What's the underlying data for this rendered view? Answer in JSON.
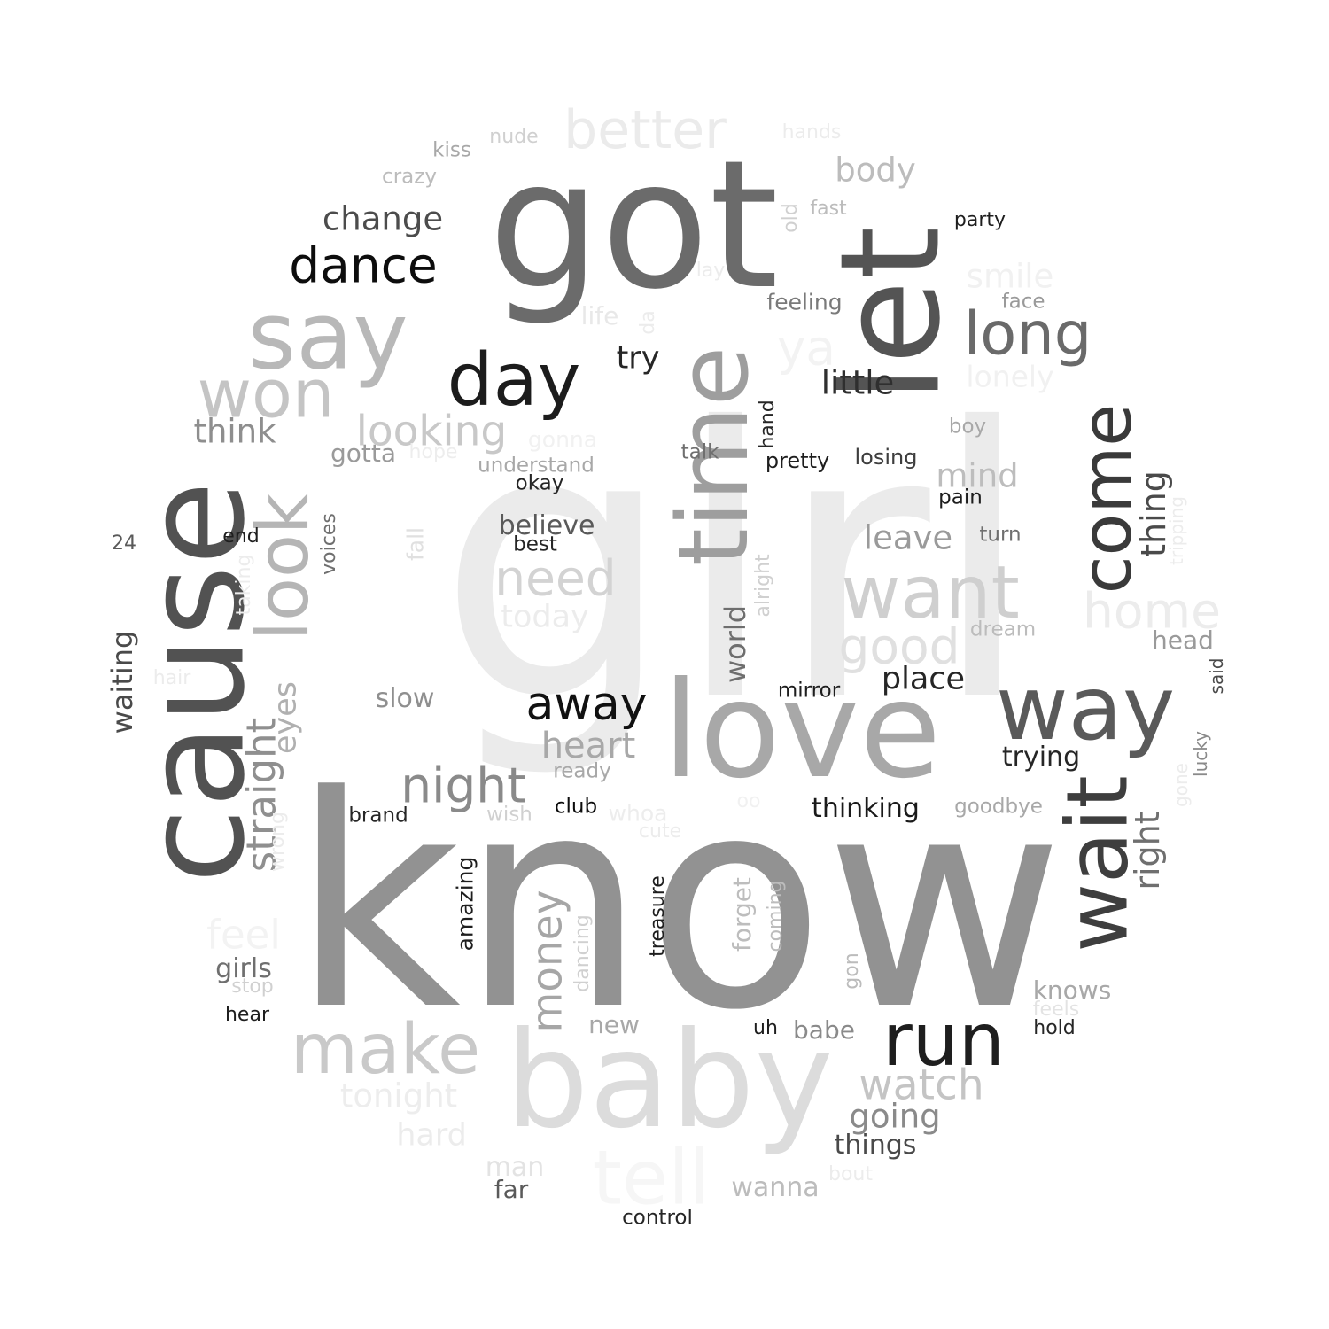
{
  "words": [
    {
      "text": "girl",
      "color": "#ebebeb"
    },
    {
      "text": "know",
      "color": "#929292"
    },
    {
      "text": "got",
      "color": "#6b6b6b"
    },
    {
      "text": "love",
      "color": "#a8a8a8"
    },
    {
      "text": "baby",
      "color": "#dcdcdc"
    },
    {
      "text": "cause",
      "color": "#525252"
    },
    {
      "text": "let",
      "color": "#545454"
    },
    {
      "text": "say",
      "color": "#b8b8b8"
    },
    {
      "text": "time",
      "color": "#9e9e9e"
    },
    {
      "text": "wait",
      "color": "#3e3e3e"
    },
    {
      "text": "way",
      "color": "#5a5a5a"
    },
    {
      "text": "won",
      "color": "#c4c4c4"
    },
    {
      "text": "run",
      "color": "#1e1e1e"
    },
    {
      "text": "day",
      "color": "#1c1c1c"
    },
    {
      "text": "want",
      "color": "#cfcfcf"
    },
    {
      "text": "make",
      "color": "#c9c9c9"
    },
    {
      "text": "come",
      "color": "#3a3a3a"
    },
    {
      "text": "tell",
      "color": "#f6f6f6"
    },
    {
      "text": "look",
      "color": "#b5b5b5"
    },
    {
      "text": "long",
      "color": "#6a6a6a"
    },
    {
      "text": "better",
      "color": "#ebebeb"
    },
    {
      "text": "dance",
      "color": "#0d0d0d"
    },
    {
      "text": "need",
      "color": "#d3d3d3"
    },
    {
      "text": "away",
      "color": "#111111"
    },
    {
      "text": "night",
      "color": "#8a8a8a"
    },
    {
      "text": "home",
      "color": "#ececec"
    },
    {
      "text": "good",
      "color": "#e0e0e0"
    },
    {
      "text": "watch",
      "color": "#c4c4c4"
    },
    {
      "text": "looking",
      "color": "#c8c8c8"
    },
    {
      "text": "straight",
      "color": "#8f8f8f"
    },
    {
      "text": "heart",
      "color": "#a8a8a8"
    },
    {
      "text": "ya",
      "color": "#f3f3f3"
    },
    {
      "text": "feel",
      "color": "#f3f3f3"
    },
    {
      "text": "money",
      "color": "#a6a6a6"
    },
    {
      "text": "little",
      "color": "#2f2f2f"
    },
    {
      "text": "thing",
      "color": "#4a4a4a"
    },
    {
      "text": "right",
      "color": "#6f6f6f"
    },
    {
      "text": "change",
      "color": "#4c4c4c"
    },
    {
      "text": "think",
      "color": "#8e8e8e"
    },
    {
      "text": "body",
      "color": "#bcbcbc"
    },
    {
      "text": "going",
      "color": "#8a8a8a"
    },
    {
      "text": "tonight",
      "color": "#ededed"
    },
    {
      "text": "place",
      "color": "#262626"
    },
    {
      "text": "leave",
      "color": "#9a9a9a"
    },
    {
      "text": "mind",
      "color": "#bdbdbd"
    },
    {
      "text": "smile",
      "color": "#f1f1f1"
    },
    {
      "text": "eyes",
      "color": "#b0b0b0"
    },
    {
      "text": "world",
      "color": "#6e6e6e"
    },
    {
      "text": "today",
      "color": "#ececec"
    },
    {
      "text": "hard",
      "color": "#ececec"
    },
    {
      "text": "try",
      "color": "#262626"
    },
    {
      "text": "waiting",
      "color": "#4a4a4a"
    },
    {
      "text": "lonely",
      "color": "#f1f1f1"
    },
    {
      "text": "believe",
      "color": "#5a5a5a"
    },
    {
      "text": "slow",
      "color": "#8f8f8f"
    },
    {
      "text": "girls",
      "color": "#6f6f6f"
    },
    {
      "text": "things",
      "color": "#4a4a4a"
    },
    {
      "text": "thinking",
      "color": "#1a1a1a"
    },
    {
      "text": "trying",
      "color": "#262626"
    },
    {
      "text": "man",
      "color": "#e3e3e3"
    },
    {
      "text": "wanna",
      "color": "#bcbcbc"
    },
    {
      "text": "gotta",
      "color": "#9a9a9a"
    },
    {
      "text": "feeling",
      "color": "#7a7a7a"
    },
    {
      "text": "knows",
      "color": "#a8a8a8"
    },
    {
      "text": "babe",
      "color": "#8a8a8a"
    },
    {
      "text": "head",
      "color": "#9a9a9a"
    },
    {
      "text": "life",
      "color": "#e8e8e8"
    },
    {
      "text": "amazing",
      "color": "#1e1e1e"
    },
    {
      "text": "forget",
      "color": "#bdbdbd"
    },
    {
      "text": "far",
      "color": "#5a5a5a"
    },
    {
      "text": "new",
      "color": "#a8a8a8"
    },
    {
      "text": "understand",
      "color": "#a8a8a8"
    },
    {
      "text": "losing",
      "color": "#3e3e3e"
    },
    {
      "text": "pretty",
      "color": "#1e1e1e"
    },
    {
      "text": "crazy",
      "color": "#bcbcbc"
    },
    {
      "text": "kiss",
      "color": "#a8a8a8"
    },
    {
      "text": "gonna",
      "color": "#f1f1f1"
    },
    {
      "text": "face",
      "color": "#9a9a9a"
    },
    {
      "text": "whoa",
      "color": "#ededed"
    },
    {
      "text": "goodbye",
      "color": "#a8a8a8"
    },
    {
      "text": "dream",
      "color": "#bcbcbc"
    },
    {
      "text": "voices",
      "color": "#6f6f6f"
    },
    {
      "text": "fall",
      "color": "#e0e0e0"
    },
    {
      "text": "mirror",
      "color": "#1e1e1e"
    },
    {
      "text": "ready",
      "color": "#a8a8a8"
    },
    {
      "text": "wish",
      "color": "#d0d0d0"
    },
    {
      "text": "turn",
      "color": "#6f6f6f"
    },
    {
      "text": "boy",
      "color": "#a8a8a8"
    },
    {
      "text": "talk",
      "color": "#6f6f6f"
    },
    {
      "text": "okay",
      "color": "#262626"
    },
    {
      "text": "best",
      "color": "#262626"
    },
    {
      "text": "pain",
      "color": "#1e1e1e"
    },
    {
      "text": "brand",
      "color": "#262626"
    },
    {
      "text": "club",
      "color": "#0d0d0d"
    },
    {
      "text": "control",
      "color": "#262626"
    },
    {
      "text": "treasure",
      "color": "#1e1e1e"
    },
    {
      "text": "coming",
      "color": "#bcbcbc"
    },
    {
      "text": "dancing",
      "color": "#d0d0d0"
    },
    {
      "text": "party",
      "color": "#1e1e1e"
    },
    {
      "text": "fast",
      "color": "#bcbcbc"
    },
    {
      "text": "old",
      "color": "#d0d0d0"
    },
    {
      "text": "alright",
      "color": "#d0d0d0"
    },
    {
      "text": "hand",
      "color": "#262626"
    },
    {
      "text": "hands",
      "color": "#ececec"
    },
    {
      "text": "nude",
      "color": "#d0d0d0"
    },
    {
      "text": "lay",
      "color": "#ececec"
    },
    {
      "text": "da",
      "color": "#ececec"
    },
    {
      "text": "hope",
      "color": "#ededed"
    },
    {
      "text": "end",
      "color": "#1e1e1e"
    },
    {
      "text": "24",
      "color": "#5a5a5a"
    },
    {
      "text": "taking",
      "color": "#ececec"
    },
    {
      "text": "hair",
      "color": "#ececec"
    },
    {
      "text": "wrong",
      "color": "#ececec"
    },
    {
      "text": "stop",
      "color": "#d0d0d0"
    },
    {
      "text": "hear",
      "color": "#1e1e1e"
    },
    {
      "text": "uh",
      "color": "#1e1e1e"
    },
    {
      "text": "hold",
      "color": "#262626"
    },
    {
      "text": "feels",
      "color": "#e3e3e3"
    },
    {
      "text": "gon",
      "color": "#bcbcbc"
    },
    {
      "text": "bout",
      "color": "#ececec"
    },
    {
      "text": "cute",
      "color": "#ececec"
    },
    {
      "text": "oo",
      "color": "#f1f1f1"
    },
    {
      "text": "tripping",
      "color": "#ececec"
    },
    {
      "text": "said",
      "color": "#4a4a4a"
    },
    {
      "text": "lucky",
      "color": "#8a8a8a"
    },
    {
      "text": "gone",
      "color": "#ececec"
    }
  ]
}
